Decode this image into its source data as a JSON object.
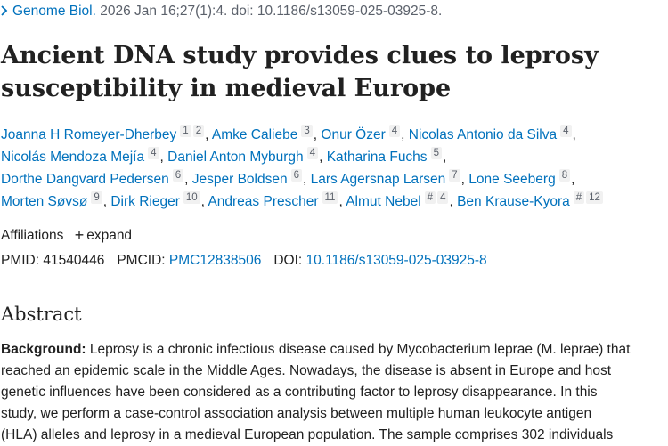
{
  "citation": {
    "chevron": "chevron-right-icon",
    "journal": "Genome Biol.",
    "details": "2026 Jan 16;27(1):4. doi: 10.1186/s13059-025-03925-8."
  },
  "title": {
    "line1": "Ancient DNA study provides clues to leprosy",
    "line2": "susceptibility in medieval Europe"
  },
  "authors": {
    "lines": [
      [
        {
          "name": "Joanna H Romeyer-Dherbey",
          "refs": [
            "1",
            "2"
          ],
          "sep": ","
        },
        {
          "name": "Amke Caliebe",
          "refs": [
            "3"
          ],
          "sep": ","
        },
        {
          "name": "Onur Özer",
          "refs": [
            "4"
          ],
          "sep": ","
        },
        {
          "name": "Nicolas Antonio da Silva",
          "refs": [
            "4"
          ],
          "sep": ","
        }
      ],
      [
        {
          "name": "Nicolás Mendoza Mejía",
          "refs": [
            "4"
          ],
          "sep": ","
        },
        {
          "name": "Daniel Anton Myburgh",
          "refs": [
            "4"
          ],
          "sep": ","
        },
        {
          "name": "Katharina Fuchs",
          "refs": [
            "5"
          ],
          "sep": ","
        }
      ],
      [
        {
          "name": "Dorthe Dangvard Pedersen",
          "refs": [
            "6"
          ],
          "sep": ","
        },
        {
          "name": "Jesper Boldsen",
          "refs": [
            "6"
          ],
          "sep": ","
        },
        {
          "name": "Lars Agersnap Larsen",
          "refs": [
            "7"
          ],
          "sep": ","
        },
        {
          "name": "Lone Seeberg",
          "refs": [
            "8"
          ],
          "sep": ","
        }
      ],
      [
        {
          "name": "Morten Søvsø",
          "refs": [
            "9"
          ],
          "sep": ","
        },
        {
          "name": "Dirk Rieger",
          "refs": [
            "10"
          ],
          "sep": ","
        },
        {
          "name": "Andreas Prescher",
          "refs": [
            "11"
          ],
          "sep": ","
        },
        {
          "name": "Almut Nebel",
          "refs": [
            "#",
            "4"
          ],
          "sep": ","
        },
        {
          "name": "Ben Krause-Kyora",
          "refs": [
            "#",
            "12"
          ],
          "sep": ""
        }
      ]
    ]
  },
  "affiliations": {
    "label": "Affiliations",
    "toggle_icon": "plus-icon",
    "toggle_label": "expand"
  },
  "identifiers": {
    "pmid_label": "PMID:",
    "pmid": "41540446",
    "pmcid_label": "PMCID:",
    "pmcid": "PMC12838506",
    "doi_label": "DOI:",
    "doi": "10.1186/s13059-025-03925-8"
  },
  "abstract": {
    "heading": "Abstract",
    "background_label": "Background:",
    "lines": [
      " Leprosy is a chronic infectious disease caused by Mycobacterium leprae (M. leprae) that",
      "reached an epidemic scale in the Middle Ages. Nowadays, the disease is absent in Europe and host",
      "genetic influences have been considered as a contributing factor to leprosy disappearance. In this",
      "study, we perform a case-control association analysis between multiple human leukocyte antigen",
      "(HLA) alleles and leprosy in a medieval European population. The sample comprises 302 individuals"
    ]
  }
}
